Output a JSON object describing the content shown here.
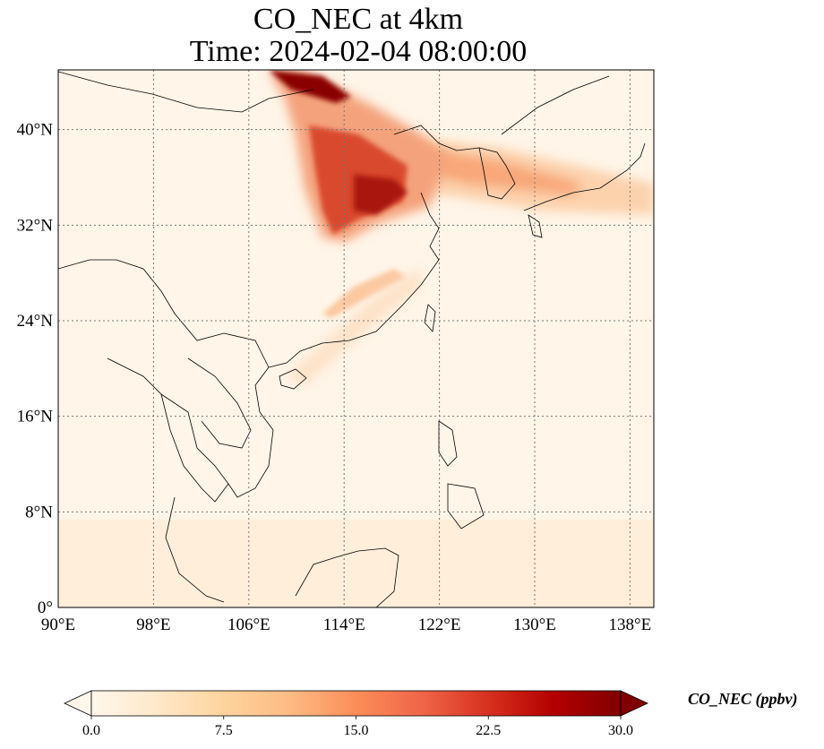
{
  "title": {
    "line1": "CO_NEC at 4km",
    "line2": "Time: 2024-02-04 08:00:00"
  },
  "map": {
    "extent": {
      "lon_min": 90,
      "lon_max": 140,
      "lat_min": 0,
      "lat_max": 45
    },
    "lon_ticks": [
      {
        "value": 90,
        "label": "90°E"
      },
      {
        "value": 98,
        "label": "98°E"
      },
      {
        "value": 106,
        "label": "106°E"
      },
      {
        "value": 114,
        "label": "114°E"
      },
      {
        "value": 122,
        "label": "122°E"
      },
      {
        "value": 130,
        "label": "130°E"
      },
      {
        "value": 138,
        "label": "138°E"
      }
    ],
    "lat_ticks": [
      {
        "value": 0,
        "label": "0°"
      },
      {
        "value": 8,
        "label": "8°N"
      },
      {
        "value": 16,
        "label": "16°N"
      },
      {
        "value": 24,
        "label": "24°N"
      },
      {
        "value": 32,
        "label": "32°N"
      },
      {
        "value": 40,
        "label": "40°N"
      }
    ],
    "gridlines": "dotted"
  },
  "colorbar": {
    "label": "CO_NEC (ppbv)",
    "colormap": "OrRd",
    "vmin": 0,
    "vmax": 30,
    "extend": "both",
    "ticks": [
      {
        "value": 0,
        "label": "0.0"
      },
      {
        "value": 7.5,
        "label": "7.5"
      },
      {
        "value": 15,
        "label": "15.0"
      },
      {
        "value": 22.5,
        "label": "22.5"
      },
      {
        "value": 30,
        "label": "30.0"
      }
    ],
    "colors": [
      "#fff7ec",
      "#fee8c8",
      "#fdd49e",
      "#fdbb84",
      "#fc8d59",
      "#ef6548",
      "#d7301f",
      "#b30000",
      "#7f0000"
    ]
  }
}
